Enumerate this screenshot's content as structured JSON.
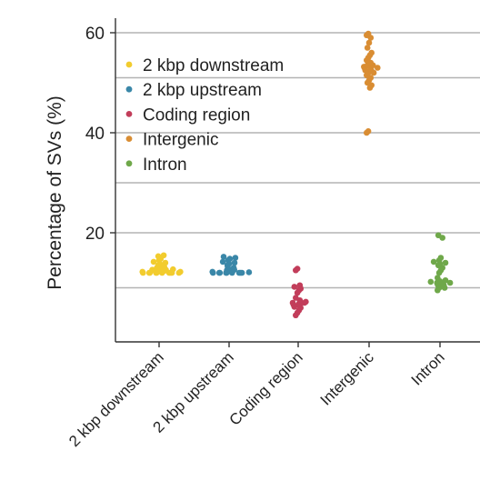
{
  "chart_data": {
    "type": "scatter",
    "title": "",
    "xlabel": "",
    "ylabel": "Percentage of SVs  (%)",
    "ylim": [
      0,
      62
    ],
    "yticks": [
      20,
      40,
      60
    ],
    "gridlines_y": [
      9,
      20,
      30,
      40,
      51,
      60
    ],
    "legend_position": "top-left",
    "categories": [
      "2 kbp downstream",
      "2 kbp upstream",
      "Coding region",
      "Intergenic",
      "Intron"
    ],
    "series": [
      {
        "name": "2 kbp downstream",
        "color": "#F2CC2E",
        "values": [
          12,
          12,
          12,
          12,
          12,
          12,
          12,
          12,
          12,
          12,
          12.2,
          12.2,
          12.3,
          12.4,
          12.5,
          12.6,
          12.6,
          12.7,
          12.8,
          12.9,
          13,
          13.2,
          13.5,
          13.8,
          14,
          14.2,
          14.5,
          14.8,
          15,
          15.3,
          15.5
        ]
      },
      {
        "name": "2 kbp upstream",
        "color": "#3A87A8",
        "values": [
          12,
          12,
          12,
          12,
          12,
          12,
          12,
          12,
          12,
          12.1,
          12.2,
          12.3,
          12.4,
          12.5,
          12.6,
          12.8,
          13,
          13.2,
          13.5,
          13.8,
          14,
          14.2,
          14.5,
          14.8,
          15,
          15.2
        ]
      },
      {
        "name": "Coding region",
        "color": "#C23D5A",
        "values": [
          3.5,
          4,
          4.5,
          5,
          5,
          5.2,
          5.5,
          5.5,
          5.6,
          5.8,
          6,
          6,
          6.2,
          6.5,
          7,
          8,
          8.5,
          8.8,
          9,
          9.2,
          9.5,
          12.5,
          12.8
        ]
      },
      {
        "name": "Intergenic",
        "color": "#D98D33",
        "values": [
          40,
          40.3,
          49,
          49.5,
          50,
          50.5,
          51,
          51.5,
          52,
          52,
          52.3,
          52.5,
          52.5,
          52.8,
          53,
          53,
          53,
          53.2,
          53.5,
          53.5,
          54,
          54.5,
          55,
          55.5,
          56,
          57,
          58,
          59,
          59.5,
          59.8
        ]
      },
      {
        "name": "Intron",
        "color": "#6FA84A",
        "values": [
          8.5,
          9,
          9,
          9.2,
          9.5,
          9.5,
          9.6,
          9.8,
          10,
          10,
          10,
          10.2,
          10.3,
          10.5,
          11,
          12,
          12.5,
          13,
          13.5,
          13.8,
          14,
          14.2,
          14.5,
          15,
          19,
          19.5
        ]
      }
    ]
  }
}
